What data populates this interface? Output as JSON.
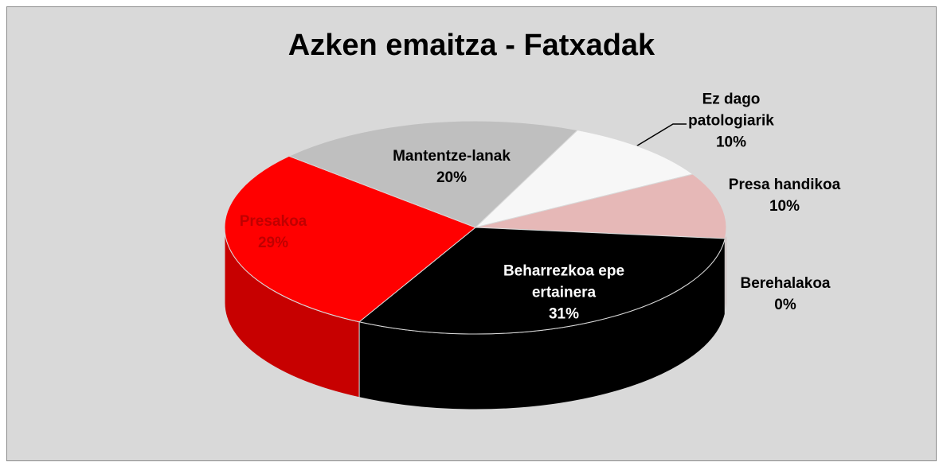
{
  "chart_data": {
    "type": "pie",
    "title": "Azken emaitza - Fatxadak",
    "categories": [
      "Ez dago patologiarik",
      "Presa handikoa",
      "Berehalakoa",
      "Beharrezkoa epe ertainera",
      "Presakoa",
      "Mantentze-lanak"
    ],
    "values": [
      10,
      10,
      0,
      31,
      29,
      20
    ],
    "value_labels": [
      "10%",
      "10%",
      "0%",
      "31%",
      "29%",
      "20%"
    ],
    "colors": [
      "#f7f7f7",
      "#e6b8b7",
      "#bfbfbf",
      "#000000",
      "#ff0000",
      "#bfbfbf"
    ]
  }
}
